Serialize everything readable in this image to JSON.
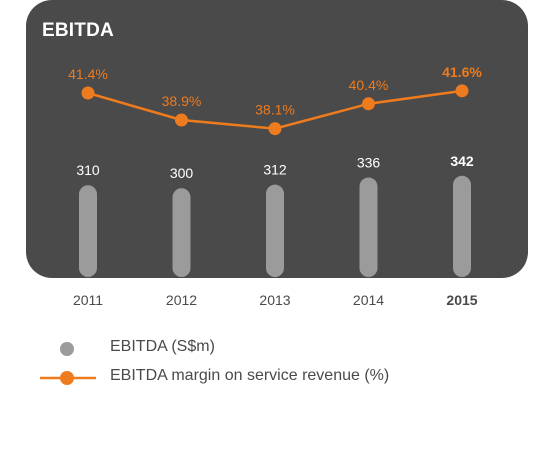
{
  "chart_data": {
    "type": "bar",
    "title": "EBITDA",
    "categories": [
      "2011",
      "2012",
      "2013",
      "2014",
      "2015"
    ],
    "highlight_category": "2015",
    "series": [
      {
        "name": "EBITDA (S$m)",
        "type": "bar",
        "values": [
          310,
          300,
          312,
          336,
          342
        ],
        "labels": [
          "310",
          "300",
          "312",
          "336",
          "342"
        ],
        "color": "#9b9b9b"
      },
      {
        "name": "EBITDA margin on service revenue (%)",
        "type": "line",
        "values": [
          41.4,
          38.9,
          38.1,
          40.4,
          41.6
        ],
        "labels": [
          "41.4%",
          "38.9%",
          "38.1%",
          "40.4%",
          "41.6%"
        ],
        "color": "#ee7b1e"
      }
    ],
    "panel_color": "#4a4a4a",
    "grid": false,
    "legend_position": "bottom"
  }
}
